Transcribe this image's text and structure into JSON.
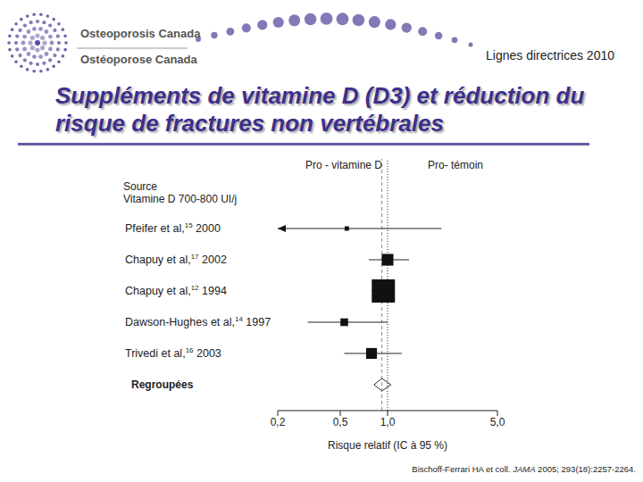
{
  "header": {
    "logo": [
      "Osteoporosis Canada",
      "Ostéoporose Canada"
    ],
    "tag": "Lignes directrices 2010",
    "title": "Suppléments de vitamine D (D3) et réduction du risque de fractures non vertébrales"
  },
  "chart_data": {
    "type": "forest",
    "side_labels": [
      "Pro - vitamine D",
      "Pro- témoin"
    ],
    "group_label": [
      "Source",
      "Vitamine D 700-800 UI/j"
    ],
    "studies": [
      {
        "name": "Pfeifer et al,",
        "ref": "15",
        "year": "2000",
        "rr": 0.55,
        "ci": [
          0.1,
          2.2
        ],
        "weight": 2
      },
      {
        "name": "Chapuy et al,",
        "ref": "17",
        "year": "2002",
        "rr": 1.0,
        "ci": [
          0.76,
          1.37
        ],
        "weight": 14
      },
      {
        "name": "Chapuy et al,",
        "ref": "12",
        "year": "1994",
        "rr": 0.94,
        "ci": [
          0.79,
          1.11
        ],
        "weight": 55
      },
      {
        "name": "Dawson-Hughes et al,",
        "ref": "14",
        "year": "1997",
        "rr": 0.53,
        "ci": [
          0.31,
          1.0
        ],
        "weight": 6
      },
      {
        "name": "Trivedi et al,",
        "ref": "16",
        "year": "2003",
        "rr": 0.79,
        "ci": [
          0.53,
          1.23
        ],
        "weight": 12
      }
    ],
    "pooled": {
      "name": "Regroupées",
      "rr": 0.92,
      "ci": [
        0.82,
        1.05
      ]
    },
    "reference_line": 1,
    "xlabel": "Risque relatif (IC à 95 %)",
    "log": "x",
    "xlim": [
      0.2,
      5
    ],
    "xticks": [
      {
        "value": 0.2,
        "label": "0,2"
      },
      {
        "value": 0.5,
        "label": "0,5"
      },
      {
        "value": 1,
        "label": "1,0"
      },
      {
        "value": 5,
        "label": "5,0"
      }
    ]
  },
  "citation": [
    "Bischoff-Ferrari HA et coll. ",
    "JAMA",
    " 2005; 293(18):2257-2264."
  ]
}
